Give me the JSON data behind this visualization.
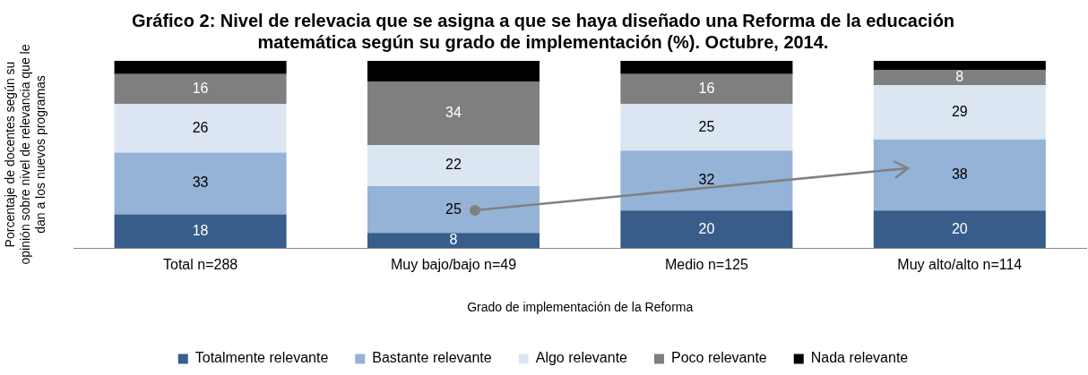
{
  "chart_data": {
    "type": "bar",
    "stacked": true,
    "title": "Gráfico 2: Nivel de relevacia que se asigna a que se haya diseñado una Reforma de la educación matemática según su grado de implementación (%). Octubre, 2014.",
    "xlabel": "Grado de implementación de la Reforma",
    "ylabel": "Porcentaje de docentes según su opinión sobre nivel de relevancia que le dan a los nuevos programas",
    "categories": [
      "Total n=288",
      "Muy bajo/bajo n=49",
      "Medio n=125",
      "Muy alto/alto n=114"
    ],
    "series": [
      {
        "name": "Totalmente relevante",
        "color": "#385d8a",
        "values": [
          18,
          8,
          20,
          20
        ],
        "value_labels": [
          "18",
          "8",
          "20",
          "20"
        ]
      },
      {
        "name": "Bastante relevante",
        "color": "#95b3d7",
        "values": [
          33,
          25,
          32,
          38
        ],
        "value_labels": [
          "33",
          "25",
          "32",
          "38"
        ]
      },
      {
        "name": "Algo relevante",
        "color": "#dce6f2",
        "values": [
          26,
          22,
          25,
          29
        ],
        "value_labels": [
          "26",
          "22",
          "25",
          "29"
        ]
      },
      {
        "name": "Poco relevante",
        "color": "#7f7f7f",
        "values": [
          16,
          34,
          16,
          8
        ],
        "value_labels": [
          "16",
          "34",
          "16",
          "8"
        ]
      },
      {
        "name": "Nada relevante",
        "color": "#000000",
        "values": [
          7,
          11,
          7,
          5
        ],
        "value_labels": [
          null,
          null,
          null,
          null
        ]
      }
    ],
    "grid": false,
    "legend": "bottom"
  }
}
